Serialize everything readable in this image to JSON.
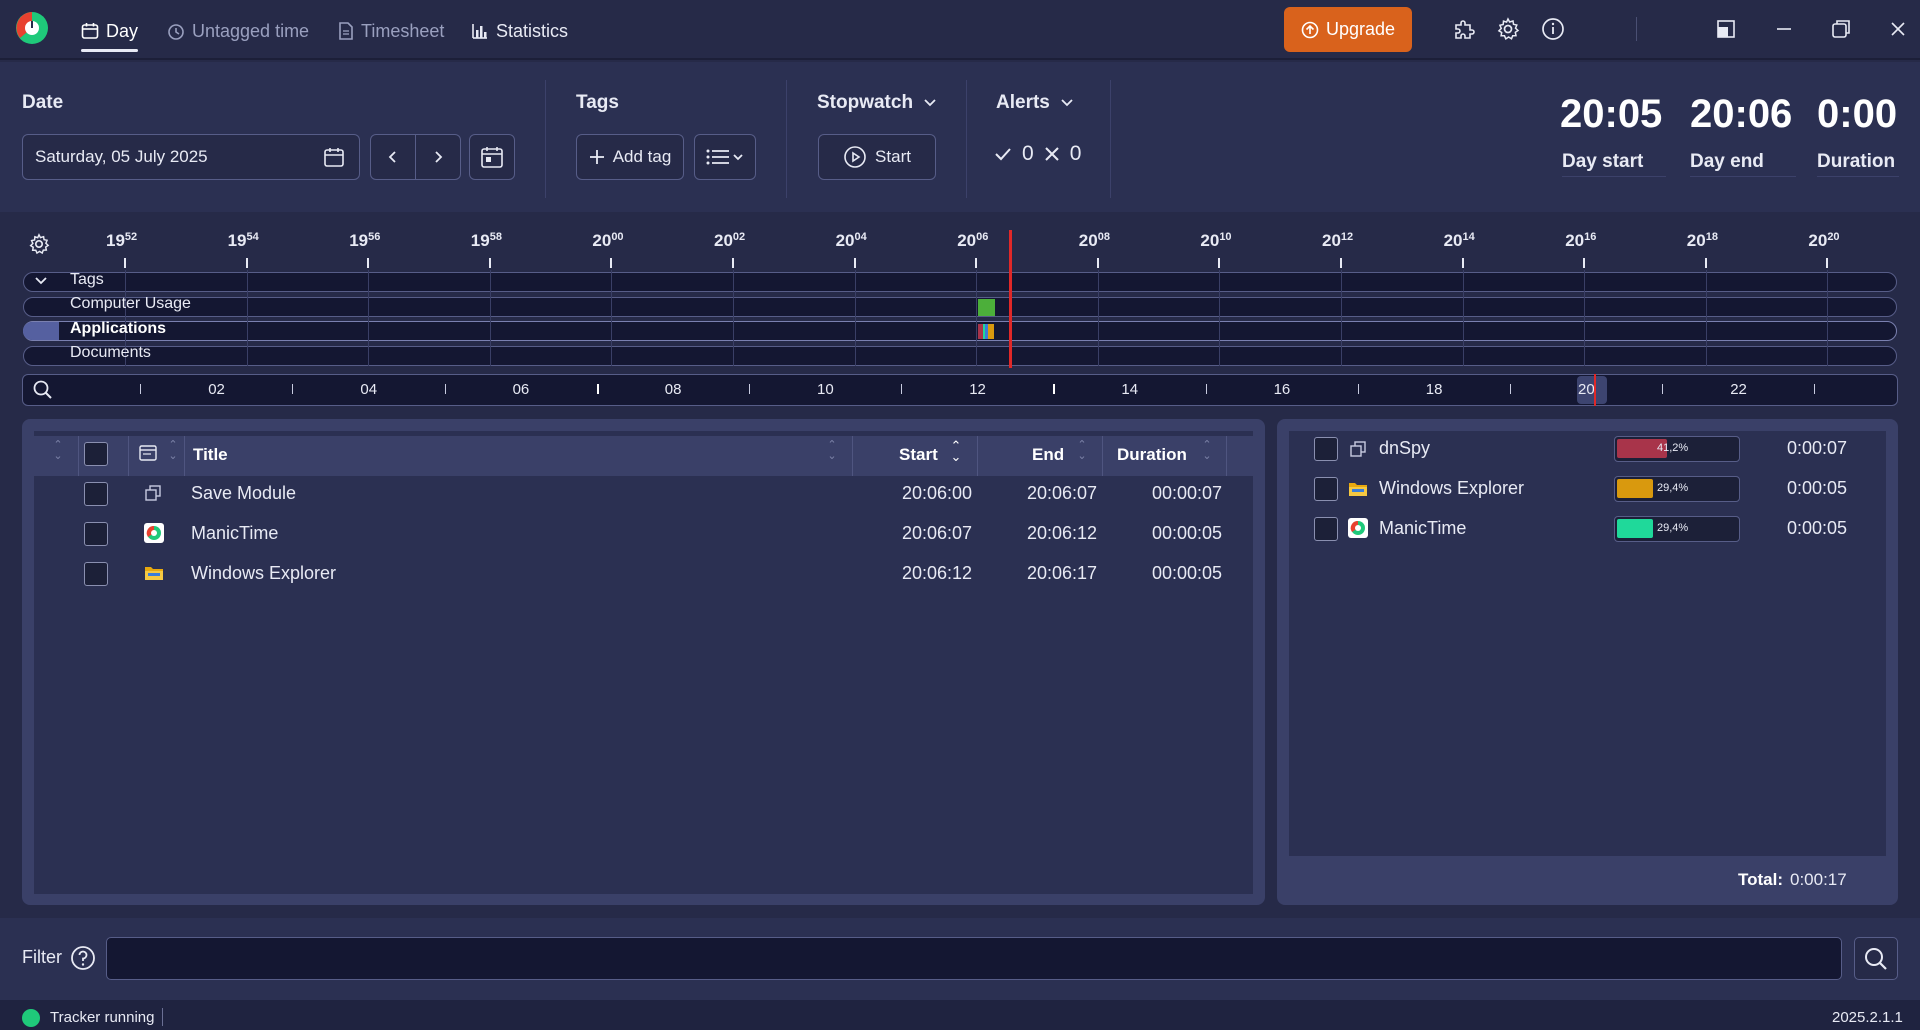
{
  "nav": {
    "tabs": [
      {
        "label": "Day",
        "icon": "calendar-icon",
        "active": true
      },
      {
        "label": "Untagged time",
        "icon": "clock-icon",
        "active": false
      },
      {
        "label": "Timesheet",
        "icon": "document-icon",
        "active": false
      },
      {
        "label": "Statistics",
        "icon": "bar-chart-icon",
        "active": false
      }
    ],
    "upgrade_label": "Upgrade",
    "icons": [
      "puzzle-icon",
      "gear-icon",
      "info-icon",
      "restore-icon",
      "minimize-icon",
      "maximize-icon",
      "close-icon"
    ]
  },
  "date_section": {
    "label": "Date",
    "value": "Saturday, 05 July 2025"
  },
  "tags_section": {
    "label": "Tags",
    "add_tag_label": "Add tag"
  },
  "stopwatch": {
    "label": "Stopwatch",
    "start_label": "Start"
  },
  "alerts": {
    "label": "Alerts",
    "checked": "0",
    "crossed": "0"
  },
  "summary": {
    "day_start": {
      "value": "20:05",
      "label": "Day start"
    },
    "day_end": {
      "value": "20:06",
      "label": "Day end"
    },
    "duration": {
      "value": "0:00",
      "label": "Duration"
    }
  },
  "timeline": {
    "ticks": [
      {
        "h": "19",
        "m": "52"
      },
      {
        "h": "19",
        "m": "54"
      },
      {
        "h": "19",
        "m": "56"
      },
      {
        "h": "19",
        "m": "58"
      },
      {
        "h": "20",
        "m": "00"
      },
      {
        "h": "20",
        "m": "02"
      },
      {
        "h": "20",
        "m": "04"
      },
      {
        "h": "20",
        "m": "06"
      },
      {
        "h": "20",
        "m": "08"
      },
      {
        "h": "20",
        "m": "10"
      },
      {
        "h": "20",
        "m": "12"
      },
      {
        "h": "20",
        "m": "14"
      },
      {
        "h": "20",
        "m": "16"
      },
      {
        "h": "20",
        "m": "18"
      },
      {
        "h": "20",
        "m": "20"
      }
    ],
    "tracks": [
      {
        "label": "Tags",
        "bold": false
      },
      {
        "label": "Computer Usage",
        "bold": false
      },
      {
        "label": "Applications",
        "bold": true
      },
      {
        "label": "Documents",
        "bold": false
      }
    ],
    "ruler_labels": [
      "02",
      "04",
      "06",
      "08",
      "10",
      "12",
      "14",
      "16",
      "18",
      "20",
      "22"
    ],
    "colors": {
      "computer_usage": "#4caf3a",
      "now_line": "#e02828"
    }
  },
  "table": {
    "headers": {
      "title": "Title",
      "start": "Start",
      "end": "End",
      "duration": "Duration"
    },
    "rows": [
      {
        "icon": "window-stack-icon",
        "title": "Save Module",
        "start": "20:06:00",
        "end": "20:06:07",
        "duration": "00:00:07"
      },
      {
        "icon": "manictime-icon",
        "title": "ManicTime",
        "start": "20:06:07",
        "end": "20:06:12",
        "duration": "00:00:05"
      },
      {
        "icon": "folder-icon",
        "title": "Windows Explorer",
        "start": "20:06:12",
        "end": "20:06:17",
        "duration": "00:00:05"
      }
    ]
  },
  "apps": {
    "items": [
      {
        "icon": "window-stack-icon",
        "name": "dnSpy",
        "percent": "41,2%",
        "fraction": 0.412,
        "color": "#a8344a",
        "time": "0:00:07"
      },
      {
        "icon": "folder-icon",
        "name": "Windows Explorer",
        "percent": "29,4%",
        "fraction": 0.294,
        "color": "#d9990e",
        "time": "0:00:05"
      },
      {
        "icon": "manictime-icon",
        "name": "ManicTime",
        "percent": "29,4%",
        "fraction": 0.294,
        "color": "#1fd99a",
        "time": "0:00:05"
      }
    ],
    "total_label": "Total:",
    "total_value": "0:00:17"
  },
  "filter": {
    "label": "Filter",
    "value": ""
  },
  "status": {
    "text": "Tracker running",
    "version": "2025.2.1.1",
    "color": "#1fc97a"
  }
}
